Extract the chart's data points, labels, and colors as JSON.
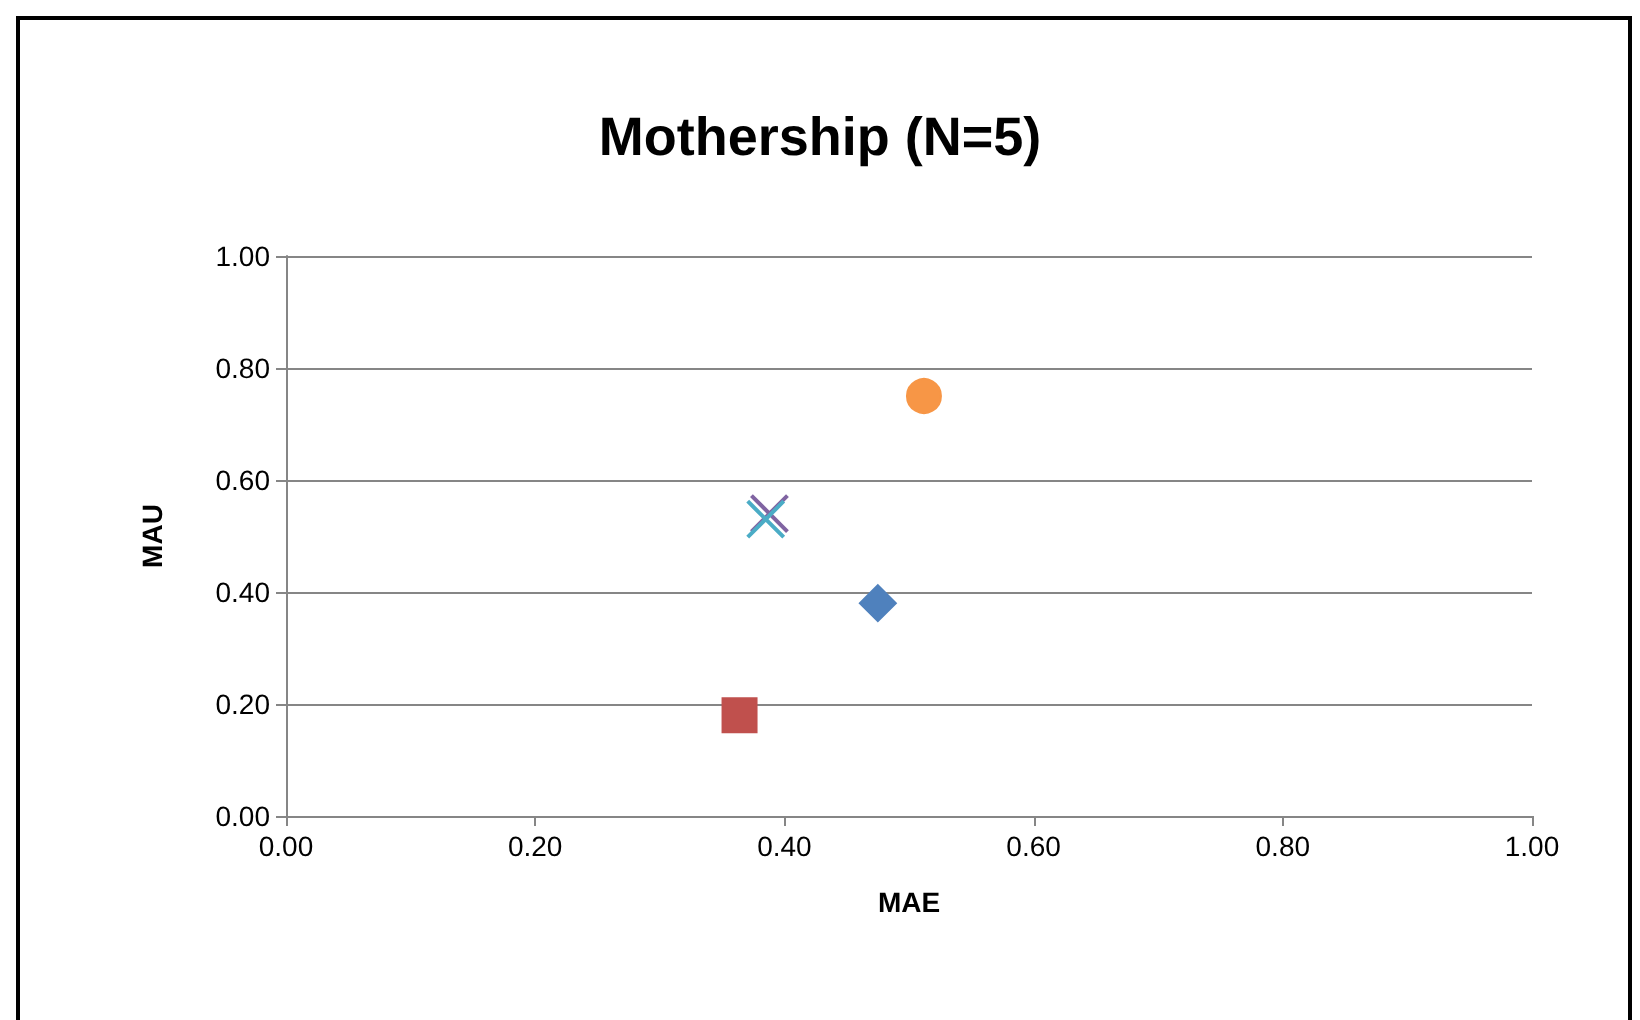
{
  "chart_data": {
    "type": "scatter",
    "title": "Mothership (N=5)",
    "xlabel": "MAE",
    "ylabel": "MAU",
    "xlim": [
      0,
      1
    ],
    "xticks": [
      {
        "value": 0,
        "label": "0.00"
      },
      {
        "value": 0.2,
        "label": "0.20"
      },
      {
        "value": 0.4,
        "label": "0.40"
      },
      {
        "value": 0.6,
        "label": "0.60"
      },
      {
        "value": 0.8,
        "label": "0.80"
      },
      {
        "value": 1,
        "label": "1.00"
      }
    ],
    "ylim": [
      0,
      1
    ],
    "yticks": [
      {
        "value": 0,
        "label": "0.00"
      },
      {
        "value": 0.2,
        "label": "0.20"
      },
      {
        "value": 0.4,
        "label": "0.40"
      },
      {
        "value": 0.6,
        "label": "0.60"
      },
      {
        "value": 0.8,
        "label": "0.80"
      },
      {
        "value": 1,
        "label": "1.00"
      }
    ],
    "grid": "y",
    "series": [
      {
        "color": "#4f81bd",
        "marker": "diamond",
        "x": [
          0.475
        ],
        "values": [
          0.38
        ]
      },
      {
        "color": "#c0504d",
        "marker": "square",
        "x": [
          0.364
        ],
        "values": [
          0.18
        ]
      },
      {
        "color": "#8064a2",
        "marker": "cross",
        "x": [
          0.388
        ],
        "values": [
          0.54
        ]
      },
      {
        "color": "#4bacc6",
        "marker": "cross",
        "x": [
          0.385
        ],
        "values": [
          0.53
        ]
      },
      {
        "color": "#f79646",
        "marker": "circle",
        "x": [
          0.512
        ],
        "values": [
          0.75
        ]
      }
    ]
  }
}
